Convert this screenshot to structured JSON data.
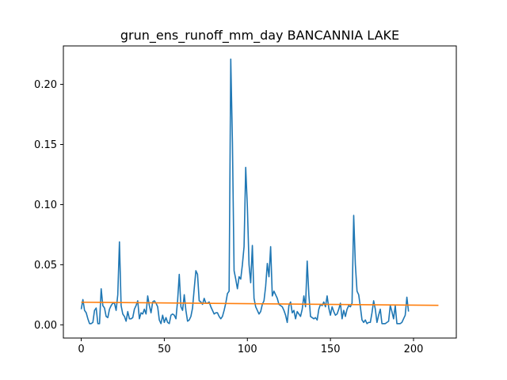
{
  "chart_data": {
    "type": "line",
    "title": "grun_ens_runoff_mm_day BANCANNIA LAKE",
    "xlabel": "",
    "ylabel": "",
    "xlim": [
      -10.75,
      225.75
    ],
    "ylim": [
      -0.011,
      0.232
    ],
    "grid": false,
    "legend": "none",
    "x_ticks": [
      0,
      50,
      100,
      150,
      200
    ],
    "x_tick_labels": [
      "0",
      "50",
      "100",
      "150",
      "200"
    ],
    "y_ticks": [
      0.0,
      0.05,
      0.1,
      0.15,
      0.2
    ],
    "y_tick_labels": [
      "0.00",
      "0.05",
      "0.10",
      "0.15",
      "0.20"
    ],
    "series": [
      {
        "color": "#1f77b4",
        "x_start": 0,
        "values": [
          0.013,
          0.021,
          0.012,
          0.01,
          0.005,
          0.001,
          0.001,
          0.002,
          0.012,
          0.014,
          0.001,
          0.001,
          0.03,
          0.016,
          0.014,
          0.007,
          0.006,
          0.013,
          0.016,
          0.018,
          0.018,
          0.012,
          0.025,
          0.069,
          0.016,
          0.009,
          0.007,
          0.003,
          0.011,
          0.005,
          0.005,
          0.006,
          0.013,
          0.016,
          0.02,
          0.005,
          0.01,
          0.009,
          0.013,
          0.009,
          0.024,
          0.016,
          0.01,
          0.019,
          0.02,
          0.018,
          0.015,
          0.004,
          0.001,
          0.008,
          0.002,
          0.006,
          0.002,
          0.001,
          0.008,
          0.009,
          0.008,
          0.005,
          0.02,
          0.042,
          0.015,
          0.012,
          0.025,
          0.012,
          0.003,
          0.004,
          0.007,
          0.014,
          0.03,
          0.045,
          0.042,
          0.02,
          0.019,
          0.017,
          0.022,
          0.018,
          0.018,
          0.019,
          0.015,
          0.012,
          0.009,
          0.01,
          0.01,
          0.007,
          0.005,
          0.007,
          0.012,
          0.018,
          0.026,
          0.028,
          0.221,
          0.152,
          0.045,
          0.038,
          0.03,
          0.04,
          0.038,
          0.05,
          0.065,
          0.131,
          0.098,
          0.05,
          0.035,
          0.066,
          0.022,
          0.015,
          0.012,
          0.009,
          0.011,
          0.017,
          0.02,
          0.032,
          0.051,
          0.04,
          0.065,
          0.024,
          0.028,
          0.025,
          0.022,
          0.017,
          0.016,
          0.015,
          0.012,
          0.008,
          0.002,
          0.016,
          0.019,
          0.01,
          0.012,
          0.005,
          0.011,
          0.009,
          0.007,
          0.013,
          0.024,
          0.015,
          0.053,
          0.025,
          0.007,
          0.006,
          0.005,
          0.006,
          0.004,
          0.013,
          0.017,
          0.016,
          0.019,
          0.015,
          0.024,
          0.014,
          0.008,
          0.015,
          0.011,
          0.008,
          0.009,
          0.013,
          0.018,
          0.005,
          0.012,
          0.007,
          0.013,
          0.016,
          0.015,
          0.018,
          0.091,
          0.05,
          0.028,
          0.025,
          0.015,
          0.004,
          0.002,
          0.004,
          0.001,
          0.002,
          0.002,
          0.01,
          0.02,
          0.013,
          0.002,
          0.008,
          0.013,
          0.001,
          0.001,
          0.001,
          0.002,
          0.003,
          0.016,
          0.011,
          0.005,
          0.016,
          0.001,
          0.001,
          0.001,
          0.002,
          0.005,
          0.008,
          0.023,
          0.011
        ]
      },
      {
        "color": "#ff7f0e",
        "x": [
          0,
          215
        ],
        "values": [
          0.0188,
          0.0162
        ]
      }
    ]
  }
}
